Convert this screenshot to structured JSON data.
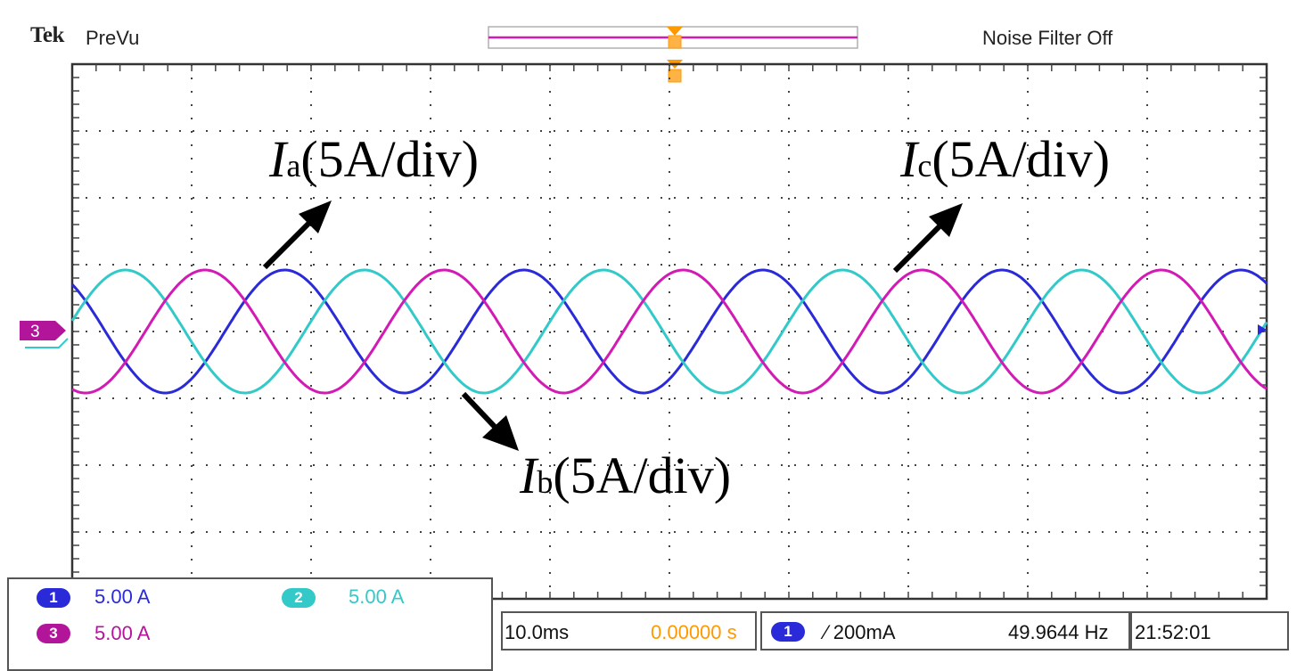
{
  "header": {
    "brand": "Tek",
    "mode": "PreVu",
    "noise_filter": "Noise Filter Off"
  },
  "ground_marker": {
    "channel": "3"
  },
  "channels": [
    {
      "number": "1",
      "scale": "5.00 A",
      "color": "#2a2ad8",
      "role": "Ia"
    },
    {
      "number": "2",
      "scale": "5.00 A",
      "color": "#33c9c9",
      "role": "Ib"
    },
    {
      "number": "3",
      "scale": "5.00 A",
      "color": "#d21ab4",
      "role": "Ic"
    }
  ],
  "annotations": {
    "ia": {
      "symbol": "I",
      "sub": "a",
      "rest": "(5A/div)"
    },
    "ib": {
      "symbol": "I",
      "sub": "b",
      "rest": "(5A/div)"
    },
    "ic": {
      "symbol": "I",
      "sub": "c",
      "rest": "(5A/div)"
    }
  },
  "timebase": {
    "time_per_div": "10.0ms",
    "position": "0.00000 s",
    "position_color": "#ff9900"
  },
  "trigger": {
    "source": "1",
    "slope_level": "⁄ 200mA",
    "frequency": "49.9644 Hz",
    "clock": "21:52:01"
  },
  "chart_data": {
    "type": "line",
    "title": "",
    "xlabel": "",
    "ylabel": "",
    "x_divisions": 10,
    "y_divisions": 8,
    "grid": true,
    "x_unit_per_div": "10.0ms",
    "y_unit_per_div": "5A",
    "series": [
      {
        "name": "Ia",
        "frequency_hz": 49.9644,
        "amplitude_div": 0.92,
        "phase_deg": 130,
        "color": "#2a2ad8"
      },
      {
        "name": "Ib",
        "frequency_hz": 49.9644,
        "amplitude_div": 0.92,
        "phase_deg": 10,
        "color": "#33c9c9"
      },
      {
        "name": "Ic",
        "frequency_hz": 49.9644,
        "amplitude_div": 0.92,
        "phase_deg": 250,
        "color": "#d21ab4"
      }
    ]
  }
}
